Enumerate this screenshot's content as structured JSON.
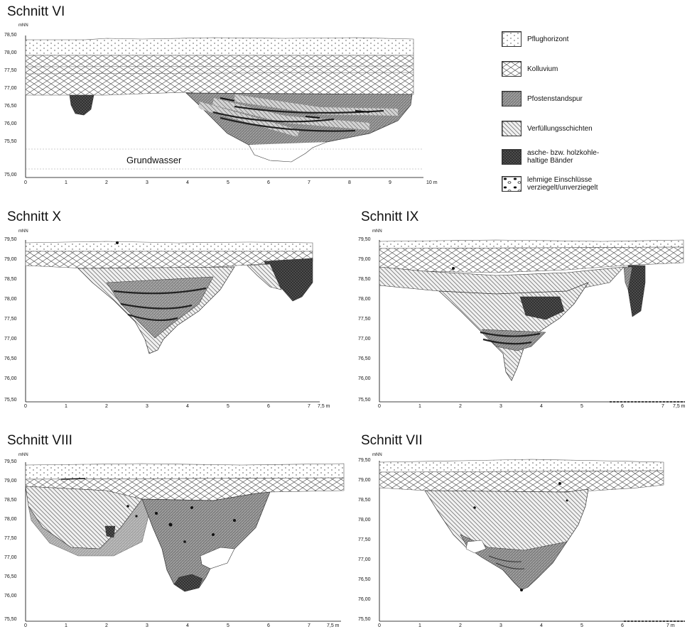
{
  "sections": [
    {
      "id": "vi",
      "title": "Schnitt VI",
      "unit": "mNN",
      "yticks": [
        "78,50",
        "78,00",
        "77,50",
        "77,00",
        "76,50",
        "76,00",
        "75,50",
        "75,00"
      ],
      "xticks": [
        "0",
        "1",
        "2",
        "3",
        "4",
        "5",
        "6",
        "7",
        "8",
        "9",
        "10 m"
      ],
      "annotation": "Grundwasser"
    },
    {
      "id": "x",
      "title": "Schnitt X",
      "unit": "mNN",
      "yticks": [
        "79,50",
        "79,00",
        "78,50",
        "78,00",
        "77,50",
        "77,00",
        "76,50",
        "76,00",
        "75,50"
      ],
      "xticks": [
        "0",
        "1",
        "2",
        "3",
        "4",
        "5",
        "6",
        "7",
        "7,5 m"
      ]
    },
    {
      "id": "ix",
      "title": "Schnitt IX",
      "unit": "mNN",
      "yticks": [
        "79,50",
        "79,00",
        "78,50",
        "78,00",
        "77,50",
        "77,00",
        "76,50",
        "76,00",
        "75,50"
      ],
      "xticks": [
        "0",
        "1",
        "2",
        "3",
        "4",
        "5",
        "6",
        "7",
        "7,5 m"
      ]
    },
    {
      "id": "viii",
      "title": "Schnitt VIII",
      "unit": "mNN",
      "yticks": [
        "79,50",
        "79,00",
        "78,50",
        "78,00",
        "77,50",
        "77,00",
        "76,50",
        "76,00",
        "75,50"
      ],
      "xticks": [
        "0",
        "1",
        "2",
        "3",
        "4",
        "5",
        "6",
        "7",
        "7,5 m"
      ]
    },
    {
      "id": "vii",
      "title": "Schnitt VII",
      "unit": "mNN",
      "yticks": [
        "79,50",
        "79,00",
        "78,50",
        "78,00",
        "77,50",
        "77,00",
        "76,50",
        "76,00",
        "75,50"
      ],
      "xticks": [
        "0",
        "1",
        "2",
        "3",
        "4",
        "5",
        "6",
        "7 m"
      ]
    }
  ],
  "legend": [
    {
      "label": "Pflughorizont",
      "pattern": "dots"
    },
    {
      "label": "Kolluvium",
      "pattern": "cross"
    },
    {
      "label": "Pfostenstandspur",
      "pattern": "fine-grey"
    },
    {
      "label": "Verfüllungsschichten",
      "pattern": "diagonal"
    },
    {
      "label": "asche- bzw. holzkohle-\nhaltige Bänder",
      "pattern": "dark"
    },
    {
      "label": "lehmige Einschlüsse\nverziegelt/unverziegelt",
      "pattern": "inclusions"
    }
  ]
}
